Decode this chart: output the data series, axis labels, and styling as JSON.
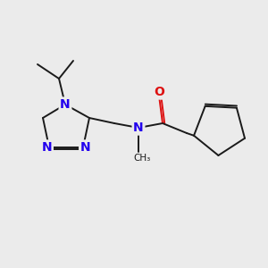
{
  "bg": "#ebebeb",
  "bond_color": "#1a1a1a",
  "N_color": "#2200ee",
  "O_color": "#dd1111",
  "font_size": 9,
  "lw": 1.4,
  "dbo": 0.02,
  "figsize": [
    3.0,
    3.0
  ],
  "dpi": 100,
  "xlim": [
    0.0,
    3.0
  ],
  "ylim": [
    0.0,
    3.0
  ]
}
